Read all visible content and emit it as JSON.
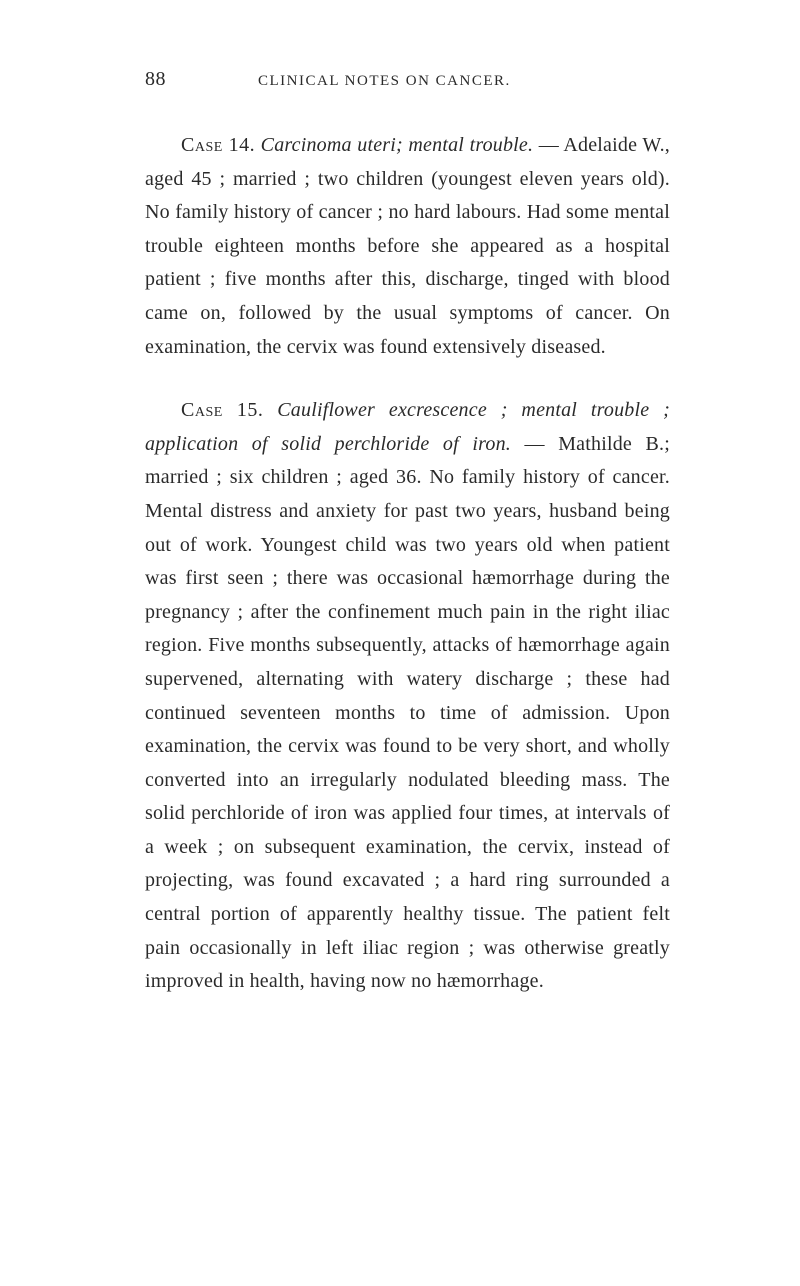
{
  "header": {
    "pageNumber": "88",
    "runningHead": "CLINICAL NOTES ON CANCER."
  },
  "case14": {
    "label": "Case 14.",
    "titleItalic": "Carcinoma uteri; mental trouble.",
    "dash": "—",
    "body": "Adelaide W., aged 45 ; married ; two children (youngest eleven years old). No family history of cancer ; no hard labours. Had some mental trouble eighteen months before she appeared as a hospital patient ; five months after this, discharge, tinged with blood came on, followed by the usual symptoms of cancer. On examination, the cervix was found extensively diseased."
  },
  "case15": {
    "label": "Case 15.",
    "titleItalic": "Cauliflower excrescence ; mental trouble ; application of solid perchloride of iron.",
    "dash": "—",
    "body": "Mathilde B.; married ; six children ; aged 36. No family history of cancer. Mental distress and anxiety for past two years, husband being out of work. Youngest child was two years old when patient was first seen ; there was occasional hæmorrhage during the pregnancy ; after the confinement much pain in the right iliac region. Five months subsequently, attacks of hæmorrhage again supervened, alternating with watery discharge ; these had continued seventeen months to time of admission. Upon examination, the cervix was found to be very short, and wholly converted into an irregularly nodulated bleeding mass. The solid perchloride of iron was applied four times, at intervals of a week ; on subsequent examination, the cervix, instead of projecting, was found excavated ; a hard ring surrounded a central portion of apparently healthy tissue. The patient felt pain occasionally in left iliac region ; was otherwise greatly improved in health, having now no hæmorrhage."
  },
  "styles": {
    "backgroundColor": "#ffffff",
    "textColor": "#2a2a2a",
    "bodyFontSize": 20,
    "headerFontSize": 15,
    "lineHeight": 1.68,
    "pageWidth": 800,
    "pageHeight": 1286
  }
}
